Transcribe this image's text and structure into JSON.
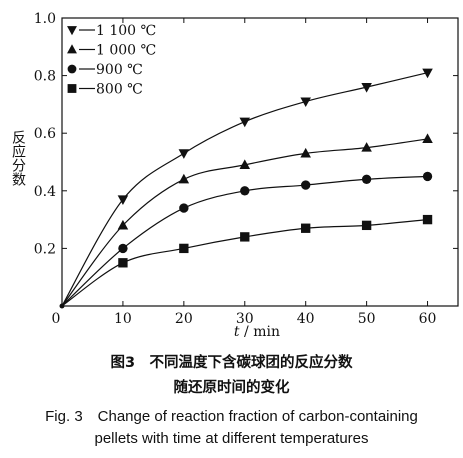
{
  "chart_data": {
    "type": "line",
    "title": "",
    "xlabel_var": "t",
    "xlabel_sep": " / ",
    "xlabel_unit": "min",
    "ylabel": "反应分数",
    "xlim": [
      0,
      65
    ],
    "ylim": [
      0,
      1.0
    ],
    "xticks": [
      "0",
      "10",
      "20",
      "30",
      "40",
      "50",
      "60"
    ],
    "yticks": [
      "0.2",
      "0.4",
      "0.6",
      "0.8",
      "1.0"
    ],
    "legend_position": "top-left",
    "markers": [
      "triangle-down",
      "triangle-up",
      "circle",
      "square"
    ],
    "x": [
      0,
      10,
      20,
      30,
      40,
      50,
      60
    ],
    "series": [
      {
        "name": "1 100 ℃",
        "values": [
          0,
          0.37,
          0.53,
          0.64,
          0.71,
          0.76,
          0.81
        ]
      },
      {
        "name": "1 000 ℃",
        "values": [
          0,
          0.28,
          0.44,
          0.49,
          0.53,
          0.55,
          0.58
        ]
      },
      {
        "name": "900 ℃",
        "values": [
          0,
          0.2,
          0.34,
          0.4,
          0.42,
          0.44,
          0.45
        ]
      },
      {
        "name": "800 ℃",
        "values": [
          0,
          0.15,
          0.2,
          0.24,
          0.27,
          0.28,
          0.3
        ]
      }
    ]
  },
  "caption": {
    "cn_line1": "图3　不同温度下含碳球团的反应分数",
    "cn_line2": "随还原时间的变化",
    "en_line1": "Fig. 3　Change of reaction fraction of carbon-containing",
    "en_line2": "pellets with time at different temperatures"
  }
}
